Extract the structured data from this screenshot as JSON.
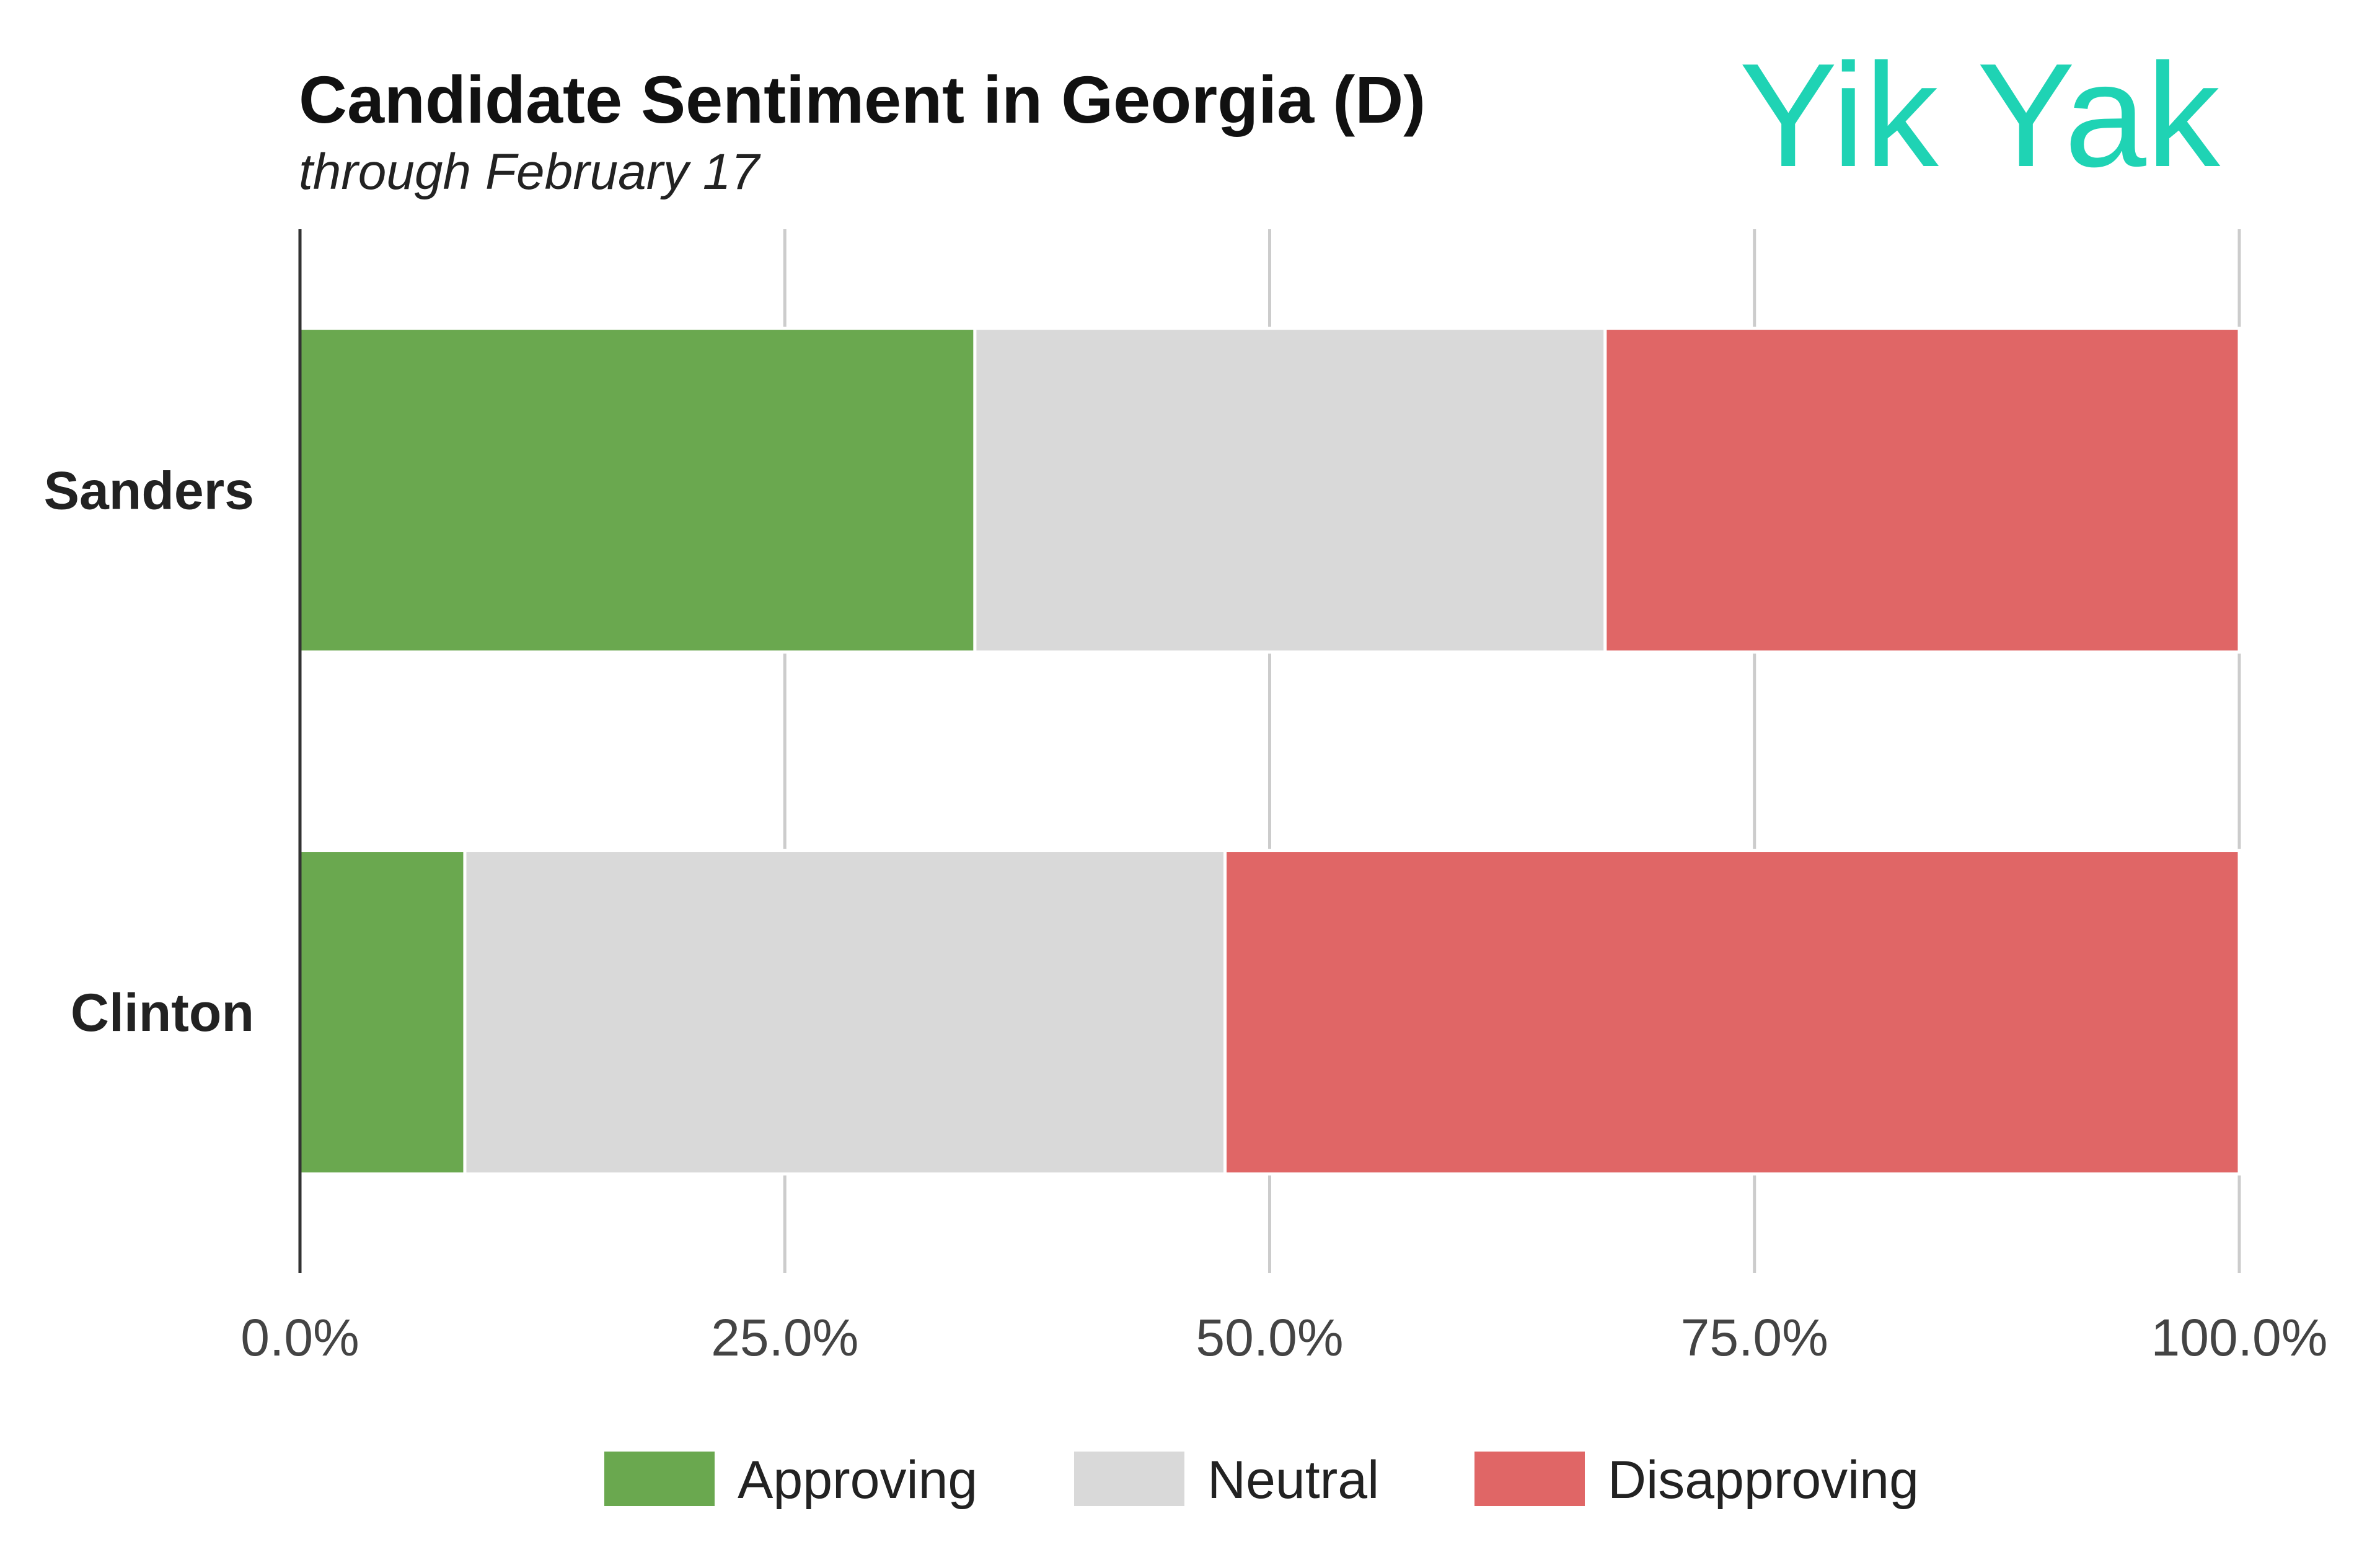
{
  "brand": {
    "name": "Yik Yak",
    "color": "#1fd3b4"
  },
  "chart_data": {
    "type": "bar",
    "orientation": "horizontal",
    "stacked": "percent",
    "title": "Candidate Sentiment in Georgia (D)",
    "subtitle": "through February 17",
    "categories": [
      "Sanders",
      "Clinton"
    ],
    "series": [
      {
        "name": "Approving",
        "color": "#6aa84f",
        "values": [
          34.8,
          8.5
        ]
      },
      {
        "name": "Neutral",
        "color": "#d9d9d9",
        "values": [
          32.5,
          39.2
        ]
      },
      {
        "name": "Disapproving",
        "color": "#e06666",
        "values": [
          32.7,
          52.3
        ]
      }
    ],
    "x_ticks": [
      "0.0%",
      "25.0%",
      "50.0%",
      "75.0%",
      "100.0%"
    ],
    "xlim": [
      0,
      100
    ],
    "grid": true,
    "legend_position": "bottom"
  }
}
